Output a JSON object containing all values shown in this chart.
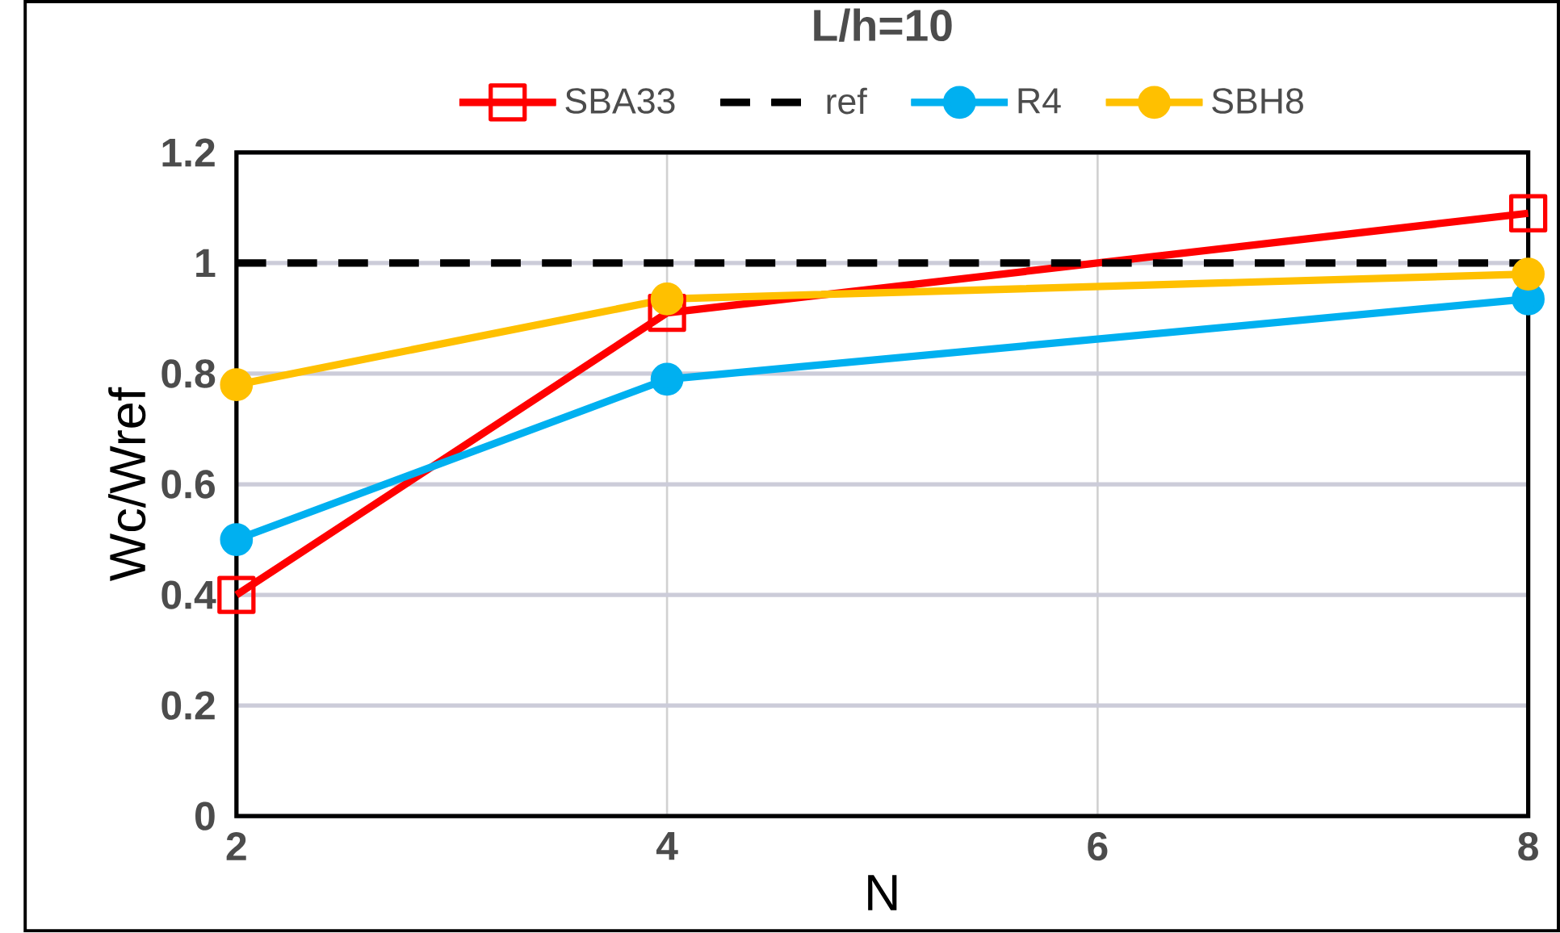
{
  "chart_data": {
    "type": "line",
    "title": "L/h=10",
    "xlabel": "N",
    "ylabel": "Wc/Wref",
    "x": [
      2,
      4,
      8
    ],
    "xlim": [
      2,
      8
    ],
    "xticks": [
      2,
      4,
      6,
      8
    ],
    "ylim": [
      0,
      1.2
    ],
    "yticks": [
      0,
      0.2,
      0.4,
      0.6,
      0.8,
      1,
      1.2
    ],
    "grid": true,
    "legend": "top",
    "series": [
      {
        "name": "SBA33",
        "color": "#ff0000",
        "marker": "square",
        "line_style": "solid",
        "values": [
          0.4,
          0.91,
          1.09
        ]
      },
      {
        "name": "ref",
        "color": "#000000",
        "marker": "none",
        "line_style": "dashed",
        "values": [
          1,
          1,
          1
        ]
      },
      {
        "name": "R4",
        "color": "#00b0f0",
        "marker": "circle",
        "line_style": "solid",
        "values": [
          0.5,
          0.79,
          0.935
        ]
      },
      {
        "name": "SBH8",
        "color": "#ffc000",
        "marker": "circle",
        "line_style": "solid",
        "values": [
          0.78,
          0.935,
          0.98
        ]
      }
    ]
  }
}
